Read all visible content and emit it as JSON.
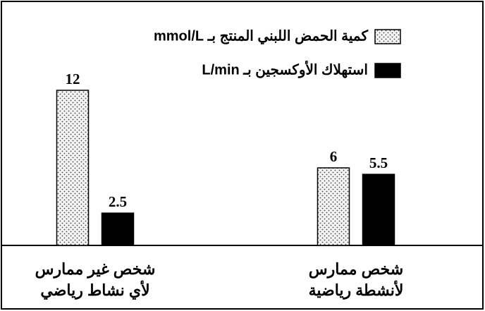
{
  "chart_data": {
    "type": "bar",
    "categories": [
      "شخص غير ممارس\nلأي نشاط رياضي",
      "شخص ممارس\nلأنشطة رياضية"
    ],
    "series": [
      {
        "name": "كمية الحمض اللبني المنتج بـ mmol/L",
        "color": "dotted",
        "values": [
          12,
          6
        ]
      },
      {
        "name": "استهلاك الأوكسجين بـ L/min",
        "color": "#000000",
        "values": [
          2.5,
          5.5
        ]
      }
    ],
    "legend": "top-right"
  }
}
